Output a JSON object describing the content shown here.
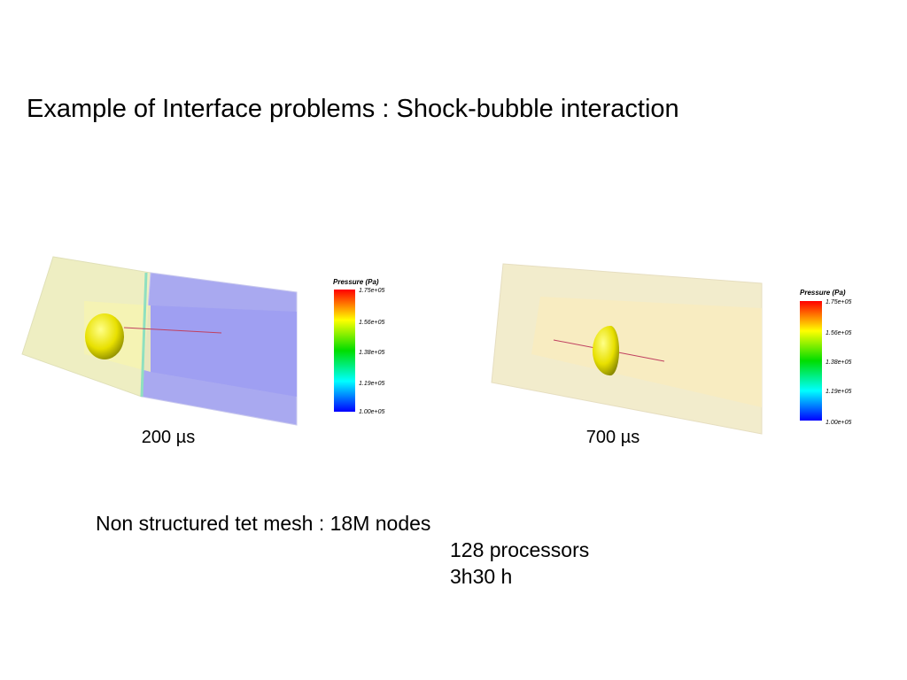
{
  "title": "Example of Interface problems : Shock-bubble interaction",
  "figures": [
    {
      "caption": "200 µs",
      "colorbar": {
        "title": "Pressure (Pa)",
        "ticks": [
          "1.75e+05",
          "1.56e+05",
          "1.38e+05",
          "1.19e+05",
          "1.00e+05"
        ]
      }
    },
    {
      "caption": "700 µs",
      "colorbar": {
        "title": "Pressure (Pa)",
        "ticks": [
          "1.75e+05",
          "1.56e+05",
          "1.38e+05",
          "1.19e+05",
          "1.00e+05"
        ]
      }
    }
  ],
  "notes": [
    "Non structured tet mesh : 18M nodes",
    "128 processors",
    "3h30 h"
  ]
}
